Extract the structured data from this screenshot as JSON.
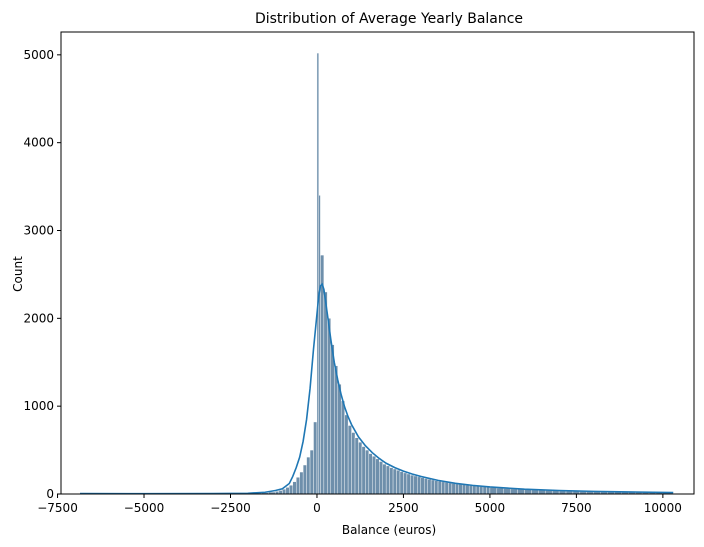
{
  "chart_data": {
    "type": "histogram",
    "title": "Distribution of Average Yearly Balance",
    "xlabel": "Balance (euros)",
    "ylabel": "Count",
    "xlim": [
      -7400,
      10900
    ],
    "ylim": [
      0,
      5260
    ],
    "grid": false,
    "legend": "none",
    "kde": true,
    "colors": {
      "bar_fill": "#6e8fab",
      "bar_edge": "#ffffff",
      "kde_line": "#1f77b4",
      "axis": "#000000"
    },
    "xticks": [
      {
        "value": -7500,
        "label": "−7500"
      },
      {
        "value": -5000,
        "label": "−5000"
      },
      {
        "value": -2500,
        "label": "−2500"
      },
      {
        "value": 0,
        "label": "0"
      },
      {
        "value": 2500,
        "label": "2500"
      },
      {
        "value": 5000,
        "label": "5000"
      },
      {
        "value": 7500,
        "label": "7500"
      },
      {
        "value": 10000,
        "label": "10000"
      }
    ],
    "yticks": [
      {
        "value": 0,
        "label": "0"
      },
      {
        "value": 1000,
        "label": "1000"
      },
      {
        "value": 2000,
        "label": "2000"
      },
      {
        "value": 3000,
        "label": "3000"
      },
      {
        "value": 4000,
        "label": "4000"
      },
      {
        "value": 5000,
        "label": "5000"
      }
    ],
    "bins": [
      {
        "x0": -6850,
        "x1": -6500,
        "count": 5
      },
      {
        "x0": -6500,
        "x1": -6000,
        "count": 3
      },
      {
        "x0": -6000,
        "x1": -5500,
        "count": 3
      },
      {
        "x0": -5500,
        "x1": -5000,
        "count": 3
      },
      {
        "x0": -5000,
        "x1": -4500,
        "count": 4
      },
      {
        "x0": -4500,
        "x1": -4000,
        "count": 4
      },
      {
        "x0": -4000,
        "x1": -3500,
        "count": 5
      },
      {
        "x0": -3500,
        "x1": -3000,
        "count": 5
      },
      {
        "x0": -3000,
        "x1": -2500,
        "count": 6
      },
      {
        "x0": -2500,
        "x1": -2000,
        "count": 8
      },
      {
        "x0": -2000,
        "x1": -1800,
        "count": 10
      },
      {
        "x0": -1800,
        "x1": -1600,
        "count": 12
      },
      {
        "x0": -1600,
        "x1": -1400,
        "count": 15
      },
      {
        "x0": -1400,
        "x1": -1200,
        "count": 22
      },
      {
        "x0": -1200,
        "x1": -1100,
        "count": 30
      },
      {
        "x0": -1100,
        "x1": -1000,
        "count": 40
      },
      {
        "x0": -1000,
        "x1": -900,
        "count": 55
      },
      {
        "x0": -900,
        "x1": -800,
        "count": 75
      },
      {
        "x0": -800,
        "x1": -700,
        "count": 100
      },
      {
        "x0": -700,
        "x1": -600,
        "count": 140
      },
      {
        "x0": -600,
        "x1": -500,
        "count": 190
      },
      {
        "x0": -500,
        "x1": -400,
        "count": 250
      },
      {
        "x0": -400,
        "x1": -300,
        "count": 330
      },
      {
        "x0": -300,
        "x1": -200,
        "count": 420
      },
      {
        "x0": -200,
        "x1": -100,
        "count": 500
      },
      {
        "x0": -100,
        "x1": 0,
        "count": 820
      },
      {
        "x0": 0,
        "x1": 50,
        "count": 5020
      },
      {
        "x0": 50,
        "x1": 100,
        "count": 3400
      },
      {
        "x0": 100,
        "x1": 200,
        "count": 2720
      },
      {
        "x0": 200,
        "x1": 300,
        "count": 2300
      },
      {
        "x0": 300,
        "x1": 400,
        "count": 2000
      },
      {
        "x0": 400,
        "x1": 500,
        "count": 1700
      },
      {
        "x0": 500,
        "x1": 600,
        "count": 1460
      },
      {
        "x0": 600,
        "x1": 700,
        "count": 1250
      },
      {
        "x0": 700,
        "x1": 800,
        "count": 1060
      },
      {
        "x0": 800,
        "x1": 900,
        "count": 900
      },
      {
        "x0": 900,
        "x1": 1000,
        "count": 780
      },
      {
        "x0": 1000,
        "x1": 1100,
        "count": 700
      },
      {
        "x0": 1100,
        "x1": 1200,
        "count": 640
      },
      {
        "x0": 1200,
        "x1": 1300,
        "count": 590
      },
      {
        "x0": 1300,
        "x1": 1400,
        "count": 540
      },
      {
        "x0": 1400,
        "x1": 1500,
        "count": 500
      },
      {
        "x0": 1500,
        "x1": 1600,
        "count": 460
      },
      {
        "x0": 1600,
        "x1": 1700,
        "count": 430
      },
      {
        "x0": 1700,
        "x1": 1800,
        "count": 400
      },
      {
        "x0": 1800,
        "x1": 1900,
        "count": 370
      },
      {
        "x0": 1900,
        "x1": 2000,
        "count": 340
      },
      {
        "x0": 2000,
        "x1": 2100,
        "count": 320
      },
      {
        "x0": 2100,
        "x1": 2200,
        "count": 300
      },
      {
        "x0": 2200,
        "x1": 2300,
        "count": 285
      },
      {
        "x0": 2300,
        "x1": 2400,
        "count": 270
      },
      {
        "x0": 2400,
        "x1": 2500,
        "count": 255
      },
      {
        "x0": 2500,
        "x1": 2600,
        "count": 240
      },
      {
        "x0": 2600,
        "x1": 2700,
        "count": 228
      },
      {
        "x0": 2700,
        "x1": 2800,
        "count": 215
      },
      {
        "x0": 2800,
        "x1": 2900,
        "count": 205
      },
      {
        "x0": 2900,
        "x1": 3000,
        "count": 195
      },
      {
        "x0": 3000,
        "x1": 3100,
        "count": 185
      },
      {
        "x0": 3100,
        "x1": 3200,
        "count": 176
      },
      {
        "x0": 3200,
        "x1": 3300,
        "count": 168
      },
      {
        "x0": 3300,
        "x1": 3400,
        "count": 160
      },
      {
        "x0": 3400,
        "x1": 3500,
        "count": 152
      },
      {
        "x0": 3500,
        "x1": 3600,
        "count": 145
      },
      {
        "x0": 3600,
        "x1": 3700,
        "count": 138
      },
      {
        "x0": 3700,
        "x1": 3800,
        "count": 132
      },
      {
        "x0": 3800,
        "x1": 3900,
        "count": 126
      },
      {
        "x0": 3900,
        "x1": 4000,
        "count": 120
      },
      {
        "x0": 4000,
        "x1": 4100,
        "count": 115
      },
      {
        "x0": 4100,
        "x1": 4200,
        "count": 110
      },
      {
        "x0": 4200,
        "x1": 4300,
        "count": 105
      },
      {
        "x0": 4300,
        "x1": 4400,
        "count": 101
      },
      {
        "x0": 4400,
        "x1": 4500,
        "count": 97
      },
      {
        "x0": 4500,
        "x1": 4600,
        "count": 93
      },
      {
        "x0": 4600,
        "x1": 4700,
        "count": 89
      },
      {
        "x0": 4700,
        "x1": 4800,
        "count": 86
      },
      {
        "x0": 4800,
        "x1": 4900,
        "count": 83
      },
      {
        "x0": 4900,
        "x1": 5000,
        "count": 80
      },
      {
        "x0": 5000,
        "x1": 5200,
        "count": 74
      },
      {
        "x0": 5200,
        "x1": 5400,
        "count": 68
      },
      {
        "x0": 5400,
        "x1": 5600,
        "count": 63
      },
      {
        "x0": 5600,
        "x1": 5800,
        "count": 58
      },
      {
        "x0": 5800,
        "x1": 6000,
        "count": 54
      },
      {
        "x0": 6000,
        "x1": 6200,
        "count": 50
      },
      {
        "x0": 6200,
        "x1": 6400,
        "count": 47
      },
      {
        "x0": 6400,
        "x1": 6600,
        "count": 44
      },
      {
        "x0": 6600,
        "x1": 6800,
        "count": 41
      },
      {
        "x0": 6800,
        "x1": 7000,
        "count": 38
      },
      {
        "x0": 7000,
        "x1": 7200,
        "count": 36
      },
      {
        "x0": 7200,
        "x1": 7400,
        "count": 34
      },
      {
        "x0": 7400,
        "x1": 7600,
        "count": 32
      },
      {
        "x0": 7600,
        "x1": 7800,
        "count": 30
      },
      {
        "x0": 7800,
        "x1": 8000,
        "count": 29
      },
      {
        "x0": 8000,
        "x1": 8200,
        "count": 28
      },
      {
        "x0": 8200,
        "x1": 8400,
        "count": 26
      },
      {
        "x0": 8400,
        "x1": 8600,
        "count": 24
      },
      {
        "x0": 8600,
        "x1": 8800,
        "count": 23
      },
      {
        "x0": 8800,
        "x1": 9000,
        "count": 22
      },
      {
        "x0": 9000,
        "x1": 9200,
        "count": 21
      },
      {
        "x0": 9200,
        "x1": 9400,
        "count": 20
      },
      {
        "x0": 9400,
        "x1": 9600,
        "count": 19
      },
      {
        "x0": 9600,
        "x1": 9800,
        "count": 18
      },
      {
        "x0": 9800,
        "x1": 10000,
        "count": 17
      },
      {
        "x0": 10000,
        "x1": 10300,
        "count": 15
      }
    ],
    "kde_points": [
      [
        -6850,
        5
      ],
      [
        -5000,
        4
      ],
      [
        -3000,
        5
      ],
      [
        -2000,
        8
      ],
      [
        -1500,
        20
      ],
      [
        -1200,
        40
      ],
      [
        -1000,
        60
      ],
      [
        -800,
        120
      ],
      [
        -700,
        200
      ],
      [
        -600,
        300
      ],
      [
        -500,
        420
      ],
      [
        -400,
        600
      ],
      [
        -300,
        850
      ],
      [
        -200,
        1200
      ],
      [
        -100,
        1650
      ],
      [
        0,
        2050
      ],
      [
        50,
        2250
      ],
      [
        100,
        2370
      ],
      [
        150,
        2390
      ],
      [
        200,
        2330
      ],
      [
        300,
        2050
      ],
      [
        400,
        1760
      ],
      [
        500,
        1500
      ],
      [
        600,
        1300
      ],
      [
        700,
        1130
      ],
      [
        800,
        990
      ],
      [
        900,
        880
      ],
      [
        1000,
        790
      ],
      [
        1200,
        650
      ],
      [
        1400,
        550
      ],
      [
        1600,
        470
      ],
      [
        1800,
        405
      ],
      [
        2000,
        350
      ],
      [
        2250,
        300
      ],
      [
        2500,
        260
      ],
      [
        2750,
        228
      ],
      [
        3000,
        200
      ],
      [
        3500,
        155
      ],
      [
        4000,
        122
      ],
      [
        4500,
        98
      ],
      [
        5000,
        80
      ],
      [
        6000,
        55
      ],
      [
        7000,
        40
      ],
      [
        8000,
        30
      ],
      [
        9000,
        24
      ],
      [
        10000,
        18
      ],
      [
        10300,
        17
      ]
    ]
  }
}
